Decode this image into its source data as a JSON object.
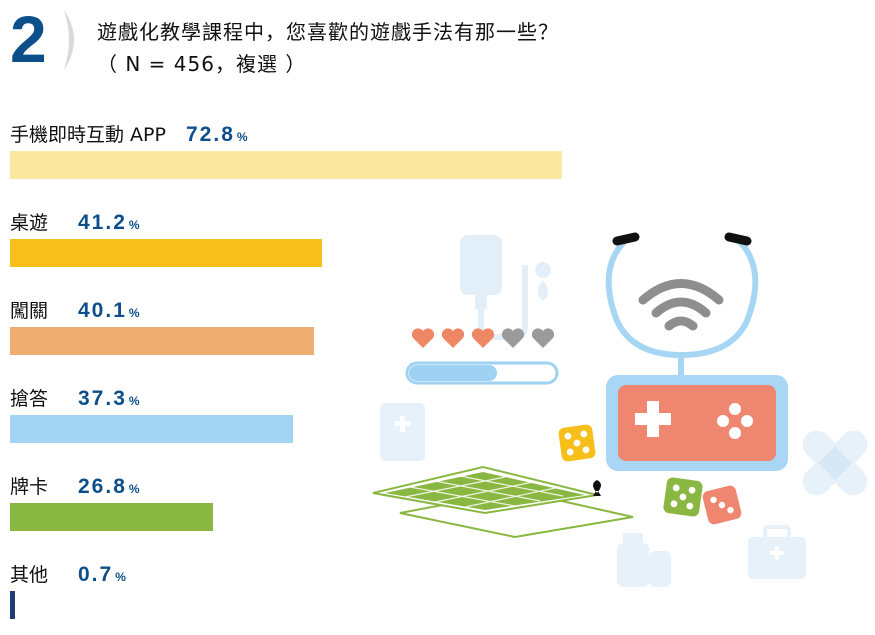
{
  "question": {
    "number": "2",
    "line1": "遊戲化教學課程中，您喜歡的遊戲手法有那一些？",
    "line2": "（ N = 456，複選 ）"
  },
  "chart_data": {
    "type": "bar",
    "orientation": "horizontal",
    "categories": [
      "手機即時互動 APP",
      "桌遊",
      "闖關",
      "搶答",
      "牌卡",
      "其他"
    ],
    "values": [
      72.8,
      41.2,
      40.1,
      37.3,
      26.8,
      0.7
    ],
    "value_labels": [
      "72.8",
      "41.2",
      "40.1",
      "37.3",
      "26.8",
      "0.7"
    ],
    "unit": "%",
    "colors": [
      "#fce9a0",
      "#f7bf1a",
      "#f0ad72",
      "#a4d4f4",
      "#8ab741",
      "#1e3d73"
    ],
    "xlim": [
      0,
      100
    ],
    "grid": false,
    "legend": "none"
  },
  "illustration_icons": [
    "iv-bag-icon",
    "hearts-health-icon",
    "progress-bar-icon",
    "stethoscope-icon",
    "wifi-icon",
    "game-controller-icon",
    "playing-cards-icon",
    "dice-icon",
    "bandage-icon",
    "first-aid-kit-icon",
    "medicine-bottle-icon"
  ]
}
